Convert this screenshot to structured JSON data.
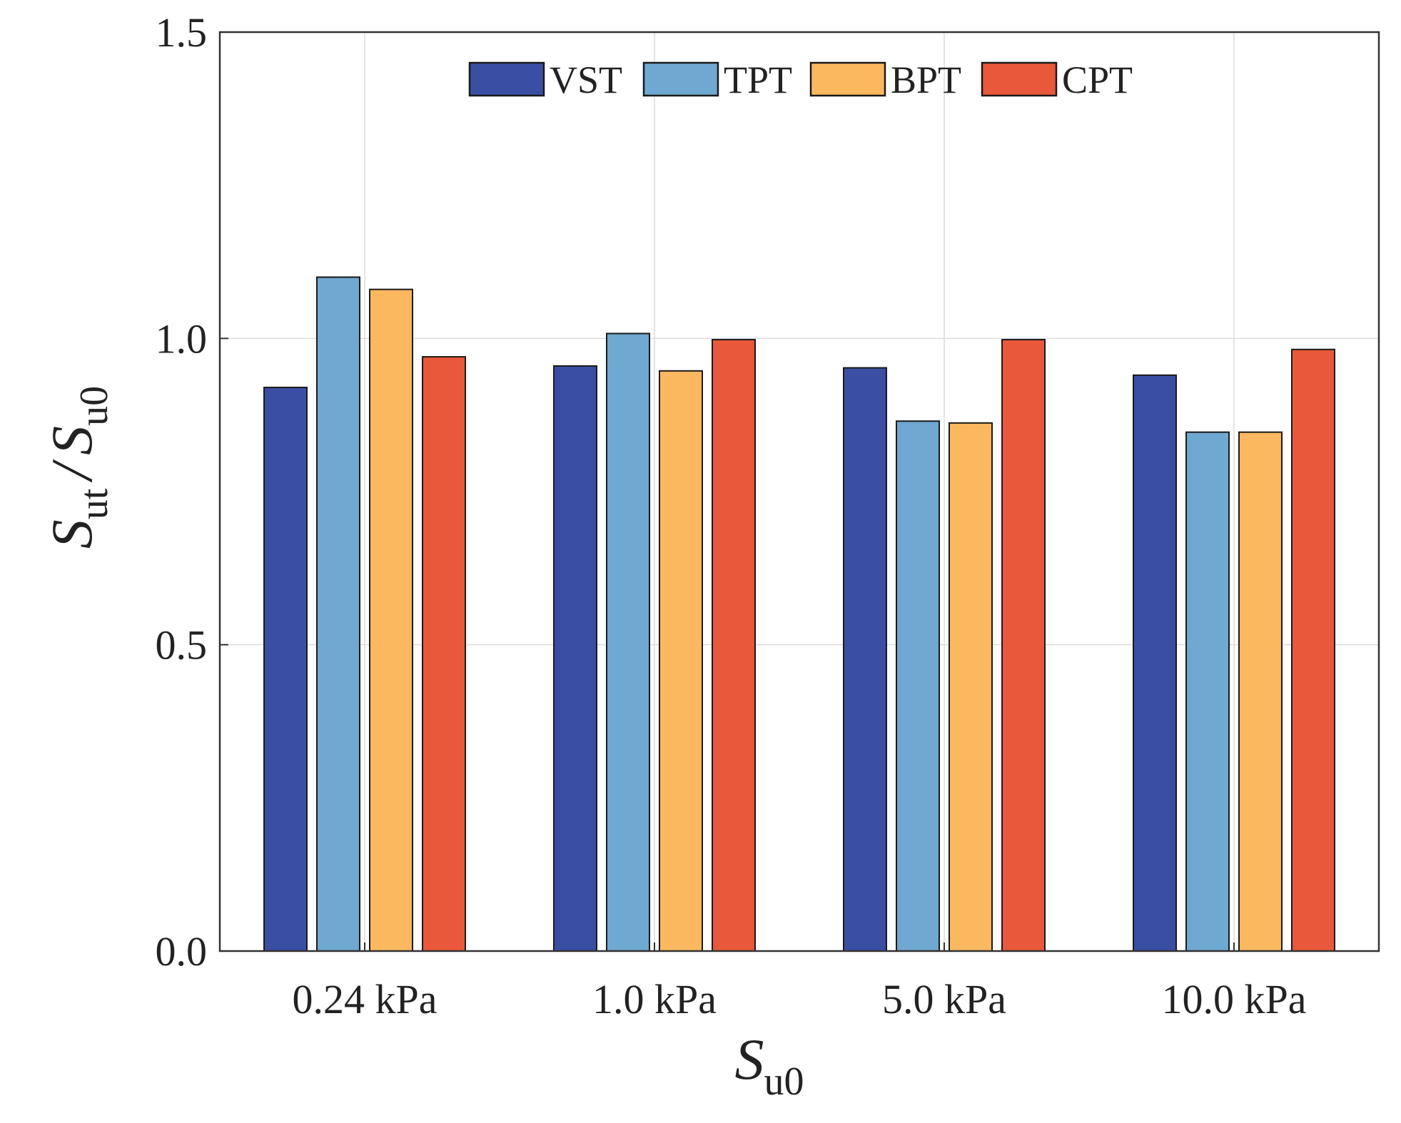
{
  "chart_data": {
    "type": "bar",
    "title": "",
    "categories": [
      "0.24 kPa",
      "1.0 kPa",
      "5.0 kPa",
      "10.0 kPa"
    ],
    "series": [
      {
        "name": "VST",
        "color": "#3a4fa3",
        "values": [
          0.92,
          0.955,
          0.952,
          0.94
        ]
      },
      {
        "name": "TPT",
        "color": "#6fa8d0",
        "values": [
          1.1,
          1.008,
          0.865,
          0.847
        ]
      },
      {
        "name": "BPT",
        "color": "#fbb85f",
        "values": [
          1.08,
          0.947,
          0.862,
          0.847
        ]
      },
      {
        "name": "CPT",
        "color": "#e9583a",
        "values": [
          0.97,
          0.998,
          0.998,
          0.982
        ]
      }
    ],
    "ylim": [
      0,
      1.5
    ],
    "yticks": [
      "0.0",
      "0.5",
      "1.0",
      "1.5"
    ],
    "xlabel": {
      "symbol": "S",
      "subscript": "u0"
    },
    "ylabel": {
      "symbol": "S",
      "subscript": "ut",
      "separator": "/",
      "symbol2": "S",
      "subscript2": "u0"
    },
    "grid": true,
    "legend_position": "top-center"
  }
}
